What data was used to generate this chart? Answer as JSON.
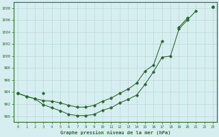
{
  "hours": [
    0,
    1,
    2,
    3,
    4,
    5,
    6,
    7,
    8,
    9,
    10,
    11,
    12,
    13,
    14,
    15,
    16,
    17,
    18,
    19,
    20,
    21,
    22,
    23
  ],
  "y_bottom": [
    993.8,
    993.3,
    992.9,
    991.9,
    991.4,
    990.9,
    990.3,
    990.1,
    990.1,
    990.3,
    991.0,
    991.4,
    992.2,
    992.8,
    993.5,
    995.3,
    997.4,
    999.8,
    1000.0,
    1004.5,
    1006.0,
    1007.5,
    null,
    1008.2
  ],
  "y_middle": [
    993.8,
    993.3,
    992.9,
    992.6,
    992.5,
    992.2,
    991.8,
    991.5,
    991.5,
    991.8,
    992.5,
    993.0,
    993.8,
    994.5,
    995.5,
    997.5,
    998.5,
    1002.5,
    null,
    1004.8,
    1006.3,
    null,
    null,
    1008.2
  ],
  "y_top": [
    993.8,
    null,
    null,
    993.8,
    null,
    null,
    null,
    null,
    null,
    null,
    null,
    null,
    null,
    null,
    null,
    null,
    null,
    null,
    null,
    null,
    null,
    null,
    null,
    1008.2
  ],
  "background_color": "#d6eef0",
  "grid_color": "#b8d8da",
  "line_color": "#2d6a2d",
  "title": "Graphe pression niveau de la mer (hPa)",
  "ylim": [
    989,
    1009
  ],
  "yticks": [
    990,
    992,
    994,
    996,
    998,
    1000,
    1002,
    1004,
    1006,
    1008
  ],
  "xlim": [
    -0.5,
    23.5
  ],
  "xticks": [
    0,
    1,
    2,
    3,
    4,
    5,
    6,
    7,
    8,
    9,
    10,
    11,
    12,
    13,
    14,
    15,
    16,
    17,
    18,
    19,
    20,
    21,
    22,
    23
  ]
}
